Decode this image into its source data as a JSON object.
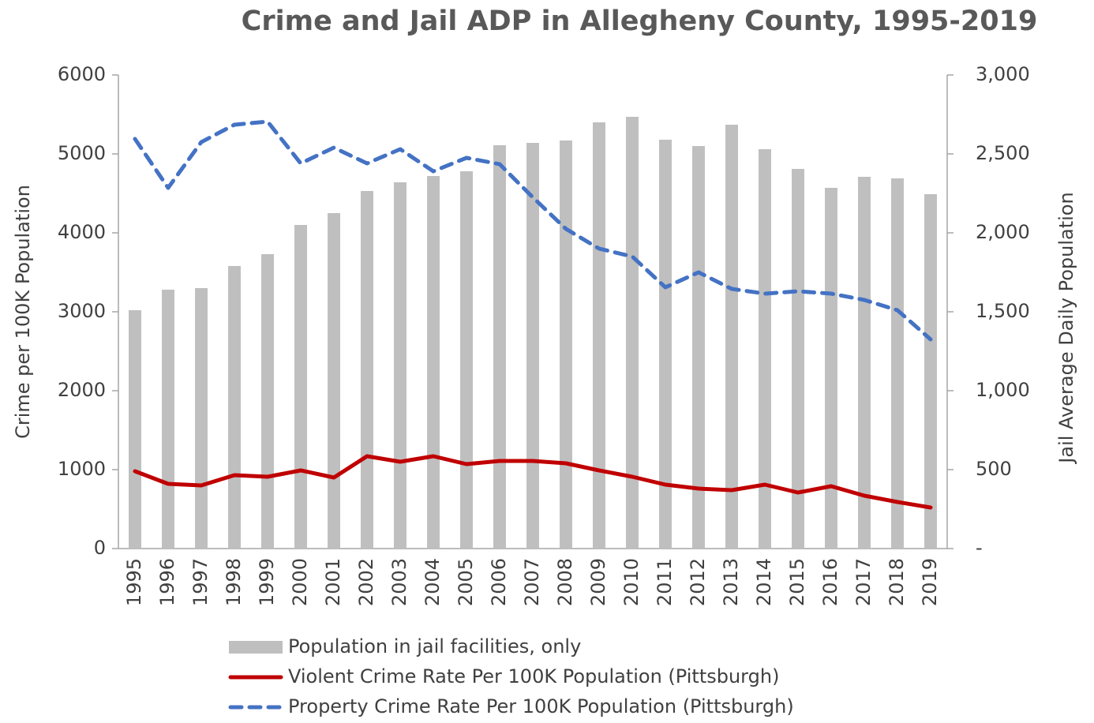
{
  "chart_data": {
    "type": "combo",
    "title": "Crime and Jail ADP in Allegheny County, 1995-2019",
    "ylabel": "Crime per 100K Population",
    "y2label": "Jail Average Daily Population",
    "categories": [
      "1995",
      "1996",
      "1997",
      "1998",
      "1999",
      "2000",
      "2001",
      "2002",
      "2003",
      "2004",
      "2005",
      "2006",
      "2007",
      "2008",
      "2009",
      "2010",
      "2011",
      "2012",
      "2013",
      "2014",
      "2015",
      "2016",
      "2017",
      "2018",
      "2019"
    ],
    "ylim": [
      0,
      6000
    ],
    "yticks": [
      0,
      1000,
      2000,
      3000,
      4000,
      5000,
      6000
    ],
    "y2lim": [
      0,
      3000
    ],
    "y2ticks": [
      {
        "value": 0,
        "label": "-"
      },
      500,
      {
        "value": 1000,
        "label": "1,000"
      },
      {
        "value": 1500,
        "label": "1,500"
      },
      {
        "value": 2000,
        "label": "2,000"
      },
      {
        "value": 2500,
        "label": "2,500"
      },
      {
        "value": 3000,
        "label": "3,000"
      }
    ],
    "legend": "bottom",
    "series": [
      {
        "name": "Population in jail facilities, only",
        "type": "bar",
        "axis": "y2",
        "color": "#bfbfbf",
        "values": [
          1510,
          1640,
          1650,
          1790,
          1865,
          2050,
          2125,
          2265,
          2320,
          2360,
          2390,
          2555,
          2570,
          2585,
          2700,
          2735,
          2590,
          2550,
          2685,
          2530,
          2405,
          2285,
          2355,
          2345,
          2245
        ]
      },
      {
        "name": "Violent Crime Rate Per 100K Population (Pittsburgh)",
        "type": "line",
        "color": "#c00000",
        "dashed": false,
        "values": [
          980,
          820,
          800,
          930,
          910,
          990,
          900,
          1170,
          1100,
          1170,
          1070,
          1110,
          1110,
          1080,
          990,
          910,
          810,
          760,
          740,
          810,
          710,
          790,
          670,
          590,
          520
        ]
      },
      {
        "name": "Property Crime Rate Per 100K Population (Pittsburgh)",
        "type": "line",
        "color": "#4472c4",
        "dashed": true,
        "values": [
          5190,
          4570,
          5150,
          5370,
          5410,
          4880,
          5080,
          4880,
          5060,
          4780,
          4950,
          4870,
          4450,
          4050,
          3800,
          3700,
          3310,
          3500,
          3290,
          3230,
          3260,
          3230,
          3150,
          3020,
          2650
        ]
      }
    ]
  }
}
